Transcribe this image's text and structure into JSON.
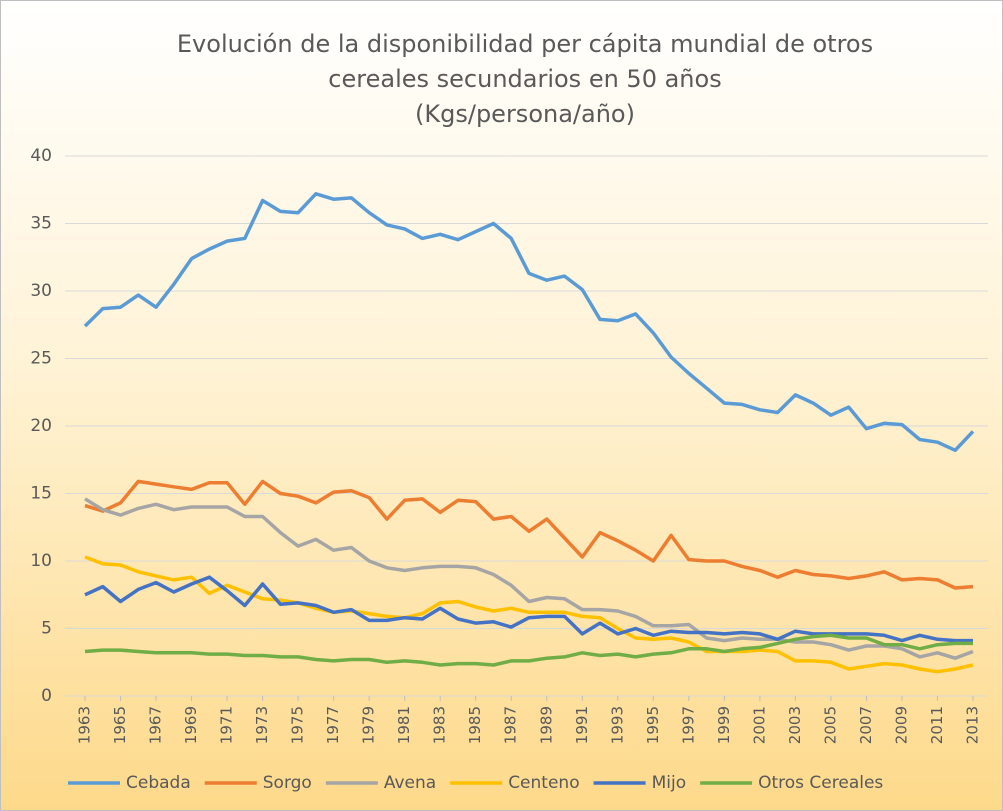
{
  "chart_data": {
    "type": "line",
    "title": [
      "Evolución de la disponibilidad per cápita mundial de otros",
      "cereales secundarios en 50 años",
      "(Kgs/persona/año)"
    ],
    "x": [
      1963,
      1964,
      1965,
      1966,
      1967,
      1968,
      1969,
      1970,
      1971,
      1972,
      1973,
      1974,
      1975,
      1976,
      1977,
      1978,
      1979,
      1980,
      1981,
      1982,
      1983,
      1984,
      1985,
      1986,
      1987,
      1988,
      1989,
      1990,
      1991,
      1992,
      1993,
      1994,
      1995,
      1996,
      1997,
      1998,
      1999,
      2000,
      2001,
      2002,
      2003,
      2004,
      2005,
      2006,
      2007,
      2008,
      2009,
      2010,
      2011,
      2012,
      2013
    ],
    "xlim": [
      1963,
      2013
    ],
    "xticks": [
      1963,
      1965,
      1967,
      1969,
      1971,
      1973,
      1975,
      1977,
      1979,
      1981,
      1983,
      1985,
      1987,
      1989,
      1991,
      1993,
      1995,
      1997,
      1999,
      2001,
      2003,
      2005,
      2007,
      2009,
      2011,
      2013
    ],
    "ylim": [
      0,
      40
    ],
    "yticks": [
      0,
      5,
      10,
      15,
      20,
      25,
      30,
      35,
      40
    ],
    "grid": true,
    "legend": "bottom",
    "series": [
      {
        "name": "Cebada",
        "color": "#5b9bd5",
        "values": [
          27.4,
          28.7,
          28.8,
          29.7,
          28.8,
          30.5,
          32.4,
          33.1,
          33.7,
          33.9,
          36.7,
          35.9,
          35.8,
          37.2,
          36.8,
          36.9,
          35.8,
          34.9,
          34.6,
          33.9,
          34.2,
          33.8,
          34.4,
          35.0,
          33.9,
          31.3,
          30.8,
          31.1,
          30.1,
          27.9,
          27.8,
          28.3,
          26.9,
          25.1,
          23.9,
          22.8,
          21.7,
          21.6,
          21.2,
          21.0,
          22.3,
          21.7,
          20.8,
          21.4,
          19.8,
          20.2,
          20.1,
          19.0,
          18.8,
          18.2,
          19.6
        ]
      },
      {
        "name": "Sorgo",
        "color": "#ed7d31",
        "values": [
          14.1,
          13.7,
          14.3,
          15.9,
          15.7,
          15.5,
          15.3,
          15.8,
          15.8,
          14.2,
          15.9,
          15.0,
          14.8,
          14.3,
          15.1,
          15.2,
          14.7,
          13.1,
          14.5,
          14.6,
          13.6,
          14.5,
          14.4,
          13.1,
          13.3,
          12.2,
          13.1,
          11.7,
          10.3,
          12.1,
          11.5,
          10.8,
          10.0,
          11.9,
          10.1,
          10.0,
          10.0,
          9.6,
          9.3,
          8.8,
          9.3,
          9.0,
          8.9,
          8.7,
          8.9,
          9.2,
          8.6,
          8.7,
          8.6,
          8.0,
          8.1
        ]
      },
      {
        "name": "Avena",
        "color": "#a5a5a5",
        "values": [
          14.6,
          13.8,
          13.4,
          13.9,
          14.2,
          13.8,
          14.0,
          14.0,
          14.0,
          13.3,
          13.3,
          12.1,
          11.1,
          11.6,
          10.8,
          11.0,
          10.0,
          9.5,
          9.3,
          9.5,
          9.6,
          9.6,
          9.5,
          9.0,
          8.2,
          7.0,
          7.3,
          7.2,
          6.4,
          6.4,
          6.3,
          5.9,
          5.2,
          5.2,
          5.3,
          4.3,
          4.1,
          4.3,
          4.2,
          4.2,
          4.0,
          4.0,
          3.8,
          3.4,
          3.7,
          3.7,
          3.5,
          2.9,
          3.2,
          2.8,
          3.3
        ]
      },
      {
        "name": "Centeno",
        "color": "#ffc000",
        "values": [
          10.3,
          9.8,
          9.7,
          9.2,
          8.9,
          8.6,
          8.8,
          7.6,
          8.2,
          7.7,
          7.2,
          7.1,
          6.9,
          6.5,
          6.2,
          6.3,
          6.1,
          5.9,
          5.8,
          6.1,
          6.9,
          7.0,
          6.6,
          6.3,
          6.5,
          6.2,
          6.2,
          6.2,
          5.9,
          5.8,
          5.0,
          4.3,
          4.2,
          4.3,
          4.0,
          3.3,
          3.3,
          3.3,
          3.4,
          3.3,
          2.6,
          2.6,
          2.5,
          2.0,
          2.2,
          2.4,
          2.3,
          2.0,
          1.8,
          2.0,
          2.3
        ]
      },
      {
        "name": "Mijo",
        "color": "#4472c4",
        "values": [
          7.5,
          8.1,
          7.0,
          7.9,
          8.4,
          7.7,
          8.3,
          8.8,
          7.8,
          6.7,
          8.3,
          6.8,
          6.9,
          6.7,
          6.2,
          6.4,
          5.6,
          5.6,
          5.8,
          5.7,
          6.5,
          5.7,
          5.4,
          5.5,
          5.1,
          5.8,
          5.9,
          5.9,
          4.6,
          5.4,
          4.6,
          5.0,
          4.5,
          4.8,
          4.7,
          4.7,
          4.6,
          4.7,
          4.6,
          4.2,
          4.8,
          4.6,
          4.6,
          4.6,
          4.6,
          4.5,
          4.1,
          4.5,
          4.2,
          4.1,
          4.1
        ]
      },
      {
        "name": "Otros Cereales",
        "color": "#70ad47",
        "values": [
          3.3,
          3.4,
          3.4,
          3.3,
          3.2,
          3.2,
          3.2,
          3.1,
          3.1,
          3.0,
          3.0,
          2.9,
          2.9,
          2.7,
          2.6,
          2.7,
          2.7,
          2.5,
          2.6,
          2.5,
          2.3,
          2.4,
          2.4,
          2.3,
          2.6,
          2.6,
          2.8,
          2.9,
          3.2,
          3.0,
          3.1,
          2.9,
          3.1,
          3.2,
          3.5,
          3.5,
          3.3,
          3.5,
          3.6,
          3.9,
          4.2,
          4.4,
          4.5,
          4.3,
          4.3,
          3.8,
          3.8,
          3.5,
          3.8,
          3.9,
          3.9
        ]
      }
    ]
  }
}
